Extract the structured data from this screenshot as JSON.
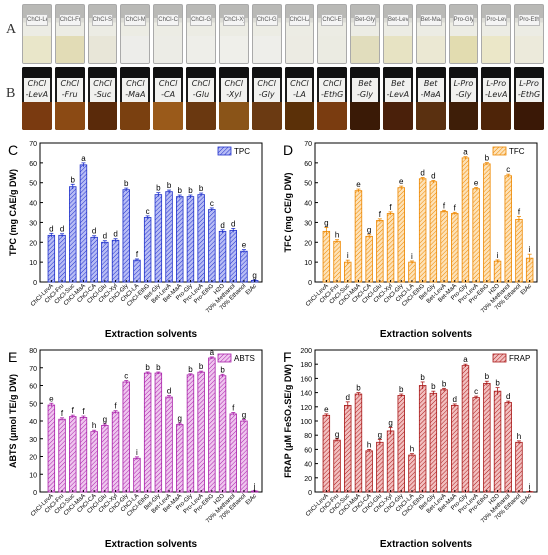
{
  "photo_labels": {
    "a": "A",
    "b": "B"
  },
  "vials_a": [
    {
      "label": "ChCl-LevA",
      "color": "#e9e6c9"
    },
    {
      "label": "ChCl-Fru",
      "color": "#e2dcb6"
    },
    {
      "label": "ChCl-Suc",
      "color": "#e8e6d8"
    },
    {
      "label": "ChCl-MaA",
      "color": "#ededea"
    },
    {
      "label": "ChCl-CA",
      "color": "#ecece6"
    },
    {
      "label": "ChCl-Glu",
      "color": "#eeeee9"
    },
    {
      "label": "ChCl-Xyl",
      "color": "#efefea"
    },
    {
      "label": "ChCl-Gly",
      "color": "#eeeeea"
    },
    {
      "label": "ChCl-LA",
      "color": "#ecebe3"
    },
    {
      "label": "ChCl-EthG",
      "color": "#ebebe2"
    },
    {
      "label": "Bet-Gly",
      "color": "#e1ddbd"
    },
    {
      "label": "Bet-LevA",
      "color": "#e7e3c3"
    },
    {
      "label": "Bet-MaA",
      "color": "#ebe8d3"
    },
    {
      "label": "Pro-Gly",
      "color": "#e2dcb0"
    },
    {
      "label": "Pro-LevA",
      "color": "#ebe7c8"
    },
    {
      "label": "Pro-EthG",
      "color": "#eceadb"
    }
  ],
  "vials_b": [
    {
      "label": "ChCl -LevA",
      "color": "#7a3a10"
    },
    {
      "label": "ChCl -Fru",
      "color": "#8b4a14"
    },
    {
      "label": "ChCl -Suc",
      "color": "#5a2a0a"
    },
    {
      "label": "ChCl -MaA",
      "color": "#7a4010"
    },
    {
      "label": "ChCl -CA",
      "color": "#9a5a1a"
    },
    {
      "label": "ChCl -Glu",
      "color": "#6a3810"
    },
    {
      "label": "ChCl -Xyl",
      "color": "#8a5418"
    },
    {
      "label": "ChCl -Gly",
      "color": "#6b3a12"
    },
    {
      "label": "ChCl -LA",
      "color": "#5b3008"
    },
    {
      "label": "ChCl -EthG",
      "color": "#7a3c10"
    },
    {
      "label": "Bet -Gly",
      "color": "#3a1a06"
    },
    {
      "label": "Bet -LevA",
      "color": "#4a200a"
    },
    {
      "label": "Bet -MaA",
      "color": "#5a3010"
    },
    {
      "label": "L-Pro -Gly",
      "color": "#3e1e08"
    },
    {
      "label": "L-Pro -LevA",
      "color": "#4e2408"
    },
    {
      "label": "L-Pro -EthG",
      "color": "#3a1806"
    }
  ],
  "chart_data": [
    {
      "type": "bar",
      "panel": "C",
      "legend": "TPC",
      "ylabel": "TPC (mg CAE/g DW)",
      "xlabel": "Extraction solvents",
      "ylim": [
        0,
        70
      ],
      "yticks": [
        0,
        10,
        20,
        30,
        40,
        50,
        60,
        70
      ],
      "categories": [
        "ChCl-LevA",
        "ChCl-Fru",
        "ChCl-Suc",
        "ChCl-MaA",
        "ChCl-CA",
        "ChCl-Glu",
        "ChCl-Xyl",
        "ChCl-Gly",
        "ChCl-LA",
        "ChCl-EthG",
        "Bet-Gly",
        "Bet-LevA",
        "Bet-MaA",
        "Pro-Gly",
        "Pro-LevA",
        "Pro-EthG",
        "H2O",
        "70% Methanol",
        "70% Ethanol",
        "EtAc"
      ],
      "values": [
        23.5,
        23.5,
        48,
        59,
        22.5,
        20,
        21,
        46.5,
        11,
        32.5,
        44,
        45.5,
        43,
        43,
        44,
        36.5,
        25.5,
        26,
        15.5,
        0.8
      ],
      "errors": [
        1,
        0.8,
        1.2,
        1,
        0.8,
        0.8,
        0.8,
        0.8,
        0.6,
        0.8,
        1,
        0.8,
        0.8,
        0.8,
        0.8,
        0.8,
        0.8,
        1,
        0.8,
        0.2
      ],
      "letters": [
        "d",
        "d",
        "b",
        "a",
        "d",
        "d",
        "d",
        "b",
        "f",
        "c",
        "b",
        "b",
        "b",
        "b",
        "b",
        "c",
        "d",
        "d",
        "e",
        "g"
      ],
      "color": "#2233cc",
      "fill": "#b8bdf5"
    },
    {
      "type": "bar",
      "panel": "D",
      "legend": "TFC",
      "ylabel": "TFC (mg CE/g DW)",
      "xlabel": "Extraction solvents",
      "ylim": [
        0,
        70
      ],
      "yticks": [
        0,
        10,
        20,
        30,
        40,
        50,
        60,
        70
      ],
      "categories": [
        "ChCl-LevA",
        "ChCl-Fru",
        "ChCl-Suc",
        "ChCl-MaA",
        "ChCl-CA",
        "ChCl-Glu",
        "ChCl-Xyl",
        "ChCl-Gly",
        "ChCl-LA",
        "ChCl-EthG",
        "Bet-Gly",
        "Bet-LevA",
        "Bet-MaA",
        "Pro-Gly",
        "Pro-LevA",
        "Pro-EthG",
        "H2O",
        "70% Methanol",
        "70% Ethanol",
        "EtAc"
      ],
      "values": [
        25.5,
        20.5,
        10,
        46,
        23,
        31,
        34.5,
        47.5,
        10,
        52,
        50.5,
        35.5,
        34.5,
        62.5,
        47,
        59.5,
        10.5,
        53.5,
        31.5,
        12
      ],
      "errors": [
        2,
        0.8,
        1,
        0.8,
        0.8,
        0.8,
        0.8,
        0.8,
        0.6,
        0.6,
        0.6,
        0.6,
        0.6,
        0.6,
        0.6,
        0.6,
        0.6,
        0.8,
        1.5,
        2
      ],
      "letters": [
        "g",
        "h",
        "i",
        "e",
        "g",
        "f",
        "f",
        "e",
        "i",
        "d",
        "d",
        "f",
        "f",
        "a",
        "e",
        "b",
        "i",
        "c",
        "f",
        "i"
      ],
      "color": "#ee8800",
      "fill": "#fde2b8"
    },
    {
      "type": "bar",
      "panel": "E",
      "legend": "ABTS",
      "ylabel": "ABTS (μmol TE/g DW)",
      "xlabel": "Extraction solvents",
      "ylim": [
        0,
        80
      ],
      "yticks": [
        0,
        10,
        20,
        30,
        40,
        50,
        60,
        70,
        80
      ],
      "categories": [
        "ChCl-LevA",
        "ChCl-Fru",
        "ChCl-Suc",
        "ChCl-MaA",
        "ChCl-CA",
        "ChCl-Glu",
        "ChCl-Xyl",
        "ChCl-Gly",
        "ChCl-LA",
        "ChCl-EthG",
        "Bet-Gly",
        "Bet-LevA",
        "Bet-MaA",
        "Pro-Gly",
        "Pro-LevA",
        "Pro-EthG",
        "H2O",
        "70% Methanol",
        "70% Ethanol",
        "EtAc"
      ],
      "values": [
        49,
        41,
        42.5,
        42,
        34,
        37.5,
        45,
        62,
        19,
        67,
        67,
        53.5,
        38,
        66,
        67.5,
        75.5,
        65.5,
        44,
        40,
        0.5
      ],
      "errors": [
        1,
        0.8,
        0.8,
        0.8,
        0.8,
        0.8,
        0.8,
        0.8,
        0.8,
        0.6,
        0.6,
        0.8,
        0.8,
        0.6,
        0.6,
        0.6,
        0.8,
        0.8,
        0.8,
        0.2
      ],
      "letters": [
        "e",
        "f",
        "f",
        "f",
        "h",
        "g",
        "f",
        "c",
        "i",
        "b",
        "b",
        "d",
        "g",
        "b",
        "b",
        "a",
        "b",
        "f",
        "g",
        "j"
      ],
      "color": "#aa22aa",
      "fill": "#efc6ef"
    },
    {
      "type": "bar",
      "panel": "F",
      "legend": "FRAP",
      "ylabel": "FRAP (μM FeSO₄SE/g DW)",
      "xlabel": "Extraction solvents",
      "ylim": [
        0,
        200
      ],
      "yticks": [
        0,
        20,
        40,
        60,
        80,
        100,
        120,
        140,
        160,
        180,
        200
      ],
      "categories": [
        "ChCl-LevA",
        "ChCl-Fru",
        "ChCl-Suc",
        "ChCl-MaA",
        "ChCl-CA",
        "ChCl-Glu",
        "ChCl-Xyl",
        "ChCl-Gly",
        "ChCl-LA",
        "ChCl-EthG",
        "Bet-Gly",
        "Bet-LevA",
        "Bet-MaA",
        "Pro-Gly",
        "Pro-LevA",
        "Pro-EthG",
        "H2O",
        "70% Methanol",
        "70% Ethanol",
        "EtAc"
      ],
      "values": [
        108,
        73,
        122,
        138,
        58,
        70,
        86,
        136,
        52,
        150,
        139,
        144,
        122,
        178,
        133,
        153,
        142,
        126,
        70,
        0.5
      ],
      "errors": [
        2,
        2,
        5,
        2,
        2,
        4,
        5,
        2,
        2,
        5,
        3,
        2,
        2,
        2,
        2,
        3,
        5,
        2,
        2,
        0.2
      ],
      "letters": [
        "e",
        "g",
        "d",
        "b",
        "h",
        "g",
        "g",
        "b",
        "h",
        "b",
        "b",
        "b",
        "d",
        "a",
        "c",
        "b",
        "b",
        "d",
        "h",
        "i"
      ],
      "color": "#aa1a1a",
      "fill": "#f2c0c0"
    }
  ]
}
